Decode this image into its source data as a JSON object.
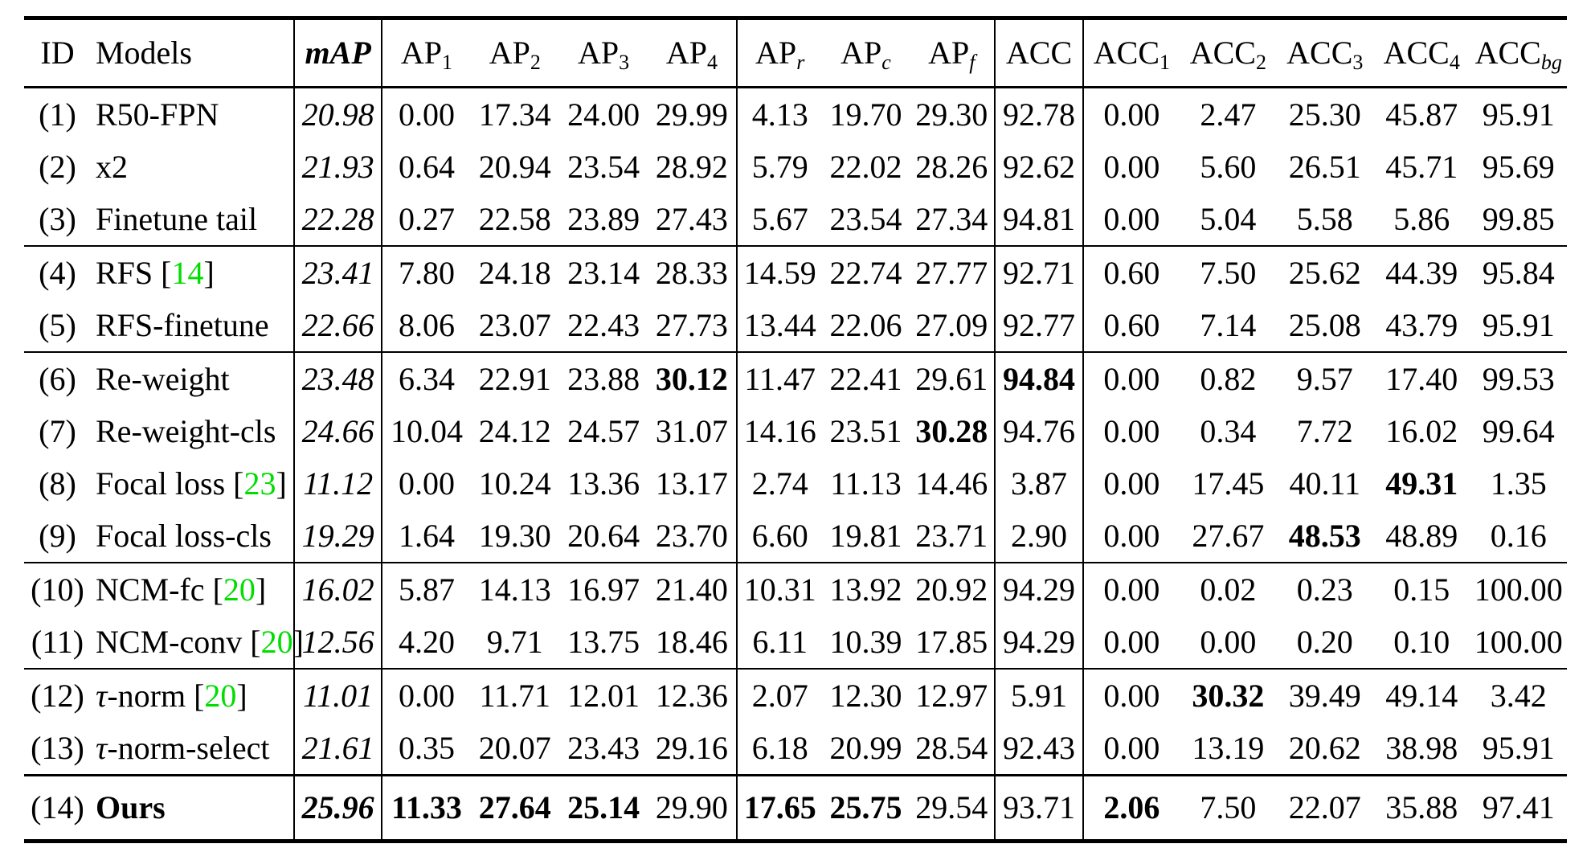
{
  "colors": {
    "citation_green": "#00DD00"
  },
  "table": {
    "columns": [
      {
        "key": "id",
        "label": "ID"
      },
      {
        "key": "model",
        "label": "Models"
      },
      {
        "key": "mAP",
        "label": "mAP",
        "bold": true,
        "italic": true
      },
      {
        "key": "AP1",
        "label": "AP",
        "sub": "1"
      },
      {
        "key": "AP2",
        "label": "AP",
        "sub": "2"
      },
      {
        "key": "AP3",
        "label": "AP",
        "sub": "3"
      },
      {
        "key": "AP4",
        "label": "AP",
        "sub": "4"
      },
      {
        "key": "APr",
        "label": "AP",
        "sub": "r",
        "sub_italic": true
      },
      {
        "key": "APc",
        "label": "AP",
        "sub": "c",
        "sub_italic": true
      },
      {
        "key": "APf",
        "label": "AP",
        "sub": "f",
        "sub_italic": true
      },
      {
        "key": "ACC",
        "label": "ACC"
      },
      {
        "key": "ACC1",
        "label": "ACC",
        "sub": "1"
      },
      {
        "key": "ACC2",
        "label": "ACC",
        "sub": "2"
      },
      {
        "key": "ACC3",
        "label": "ACC",
        "sub": "3"
      },
      {
        "key": "ACC4",
        "label": "ACC",
        "sub": "4"
      },
      {
        "key": "ACCbg",
        "label": "ACC",
        "sub": "bg",
        "sub_italic": true
      }
    ],
    "rows": [
      {
        "id": "(1)",
        "model": "R50-FPN",
        "cite": null,
        "group_start": false,
        "final": false,
        "bold": [],
        "values": [
          "20.98",
          "0.00",
          "17.34",
          "24.00",
          "29.99",
          "4.13",
          "19.70",
          "29.30",
          "92.78",
          "0.00",
          "2.47",
          "25.30",
          "45.87",
          "95.91"
        ]
      },
      {
        "id": "(2)",
        "model": "x2",
        "cite": null,
        "group_start": false,
        "final": false,
        "bold": [],
        "values": [
          "21.93",
          "0.64",
          "20.94",
          "23.54",
          "28.92",
          "5.79",
          "22.02",
          "28.26",
          "92.62",
          "0.00",
          "5.60",
          "26.51",
          "45.71",
          "95.69"
        ]
      },
      {
        "id": "(3)",
        "model": "Finetune tail",
        "cite": null,
        "group_start": false,
        "final": false,
        "bold": [],
        "values": [
          "22.28",
          "0.27",
          "22.58",
          "23.89",
          "27.43",
          "5.67",
          "23.54",
          "27.34",
          "94.81",
          "0.00",
          "5.04",
          "5.58",
          "5.86",
          "99.85"
        ]
      },
      {
        "id": "(4)",
        "model": "RFS",
        "cite": "14",
        "group_start": true,
        "final": false,
        "bold": [],
        "values": [
          "23.41",
          "7.80",
          "24.18",
          "23.14",
          "28.33",
          "14.59",
          "22.74",
          "27.77",
          "92.71",
          "0.60",
          "7.50",
          "25.62",
          "44.39",
          "95.84"
        ]
      },
      {
        "id": "(5)",
        "model": "RFS-finetune",
        "cite": null,
        "group_start": false,
        "final": false,
        "bold": [],
        "values": [
          "22.66",
          "8.06",
          "23.07",
          "22.43",
          "27.73",
          "13.44",
          "22.06",
          "27.09",
          "92.77",
          "0.60",
          "7.14",
          "25.08",
          "43.79",
          "95.91"
        ]
      },
      {
        "id": "(6)",
        "model": "Re-weight",
        "cite": null,
        "group_start": true,
        "final": false,
        "bold": [
          4,
          8
        ],
        "values": [
          "23.48",
          "6.34",
          "22.91",
          "23.88",
          "30.12",
          "11.47",
          "22.41",
          "29.61",
          "94.84",
          "0.00",
          "0.82",
          "9.57",
          "17.40",
          "99.53"
        ]
      },
      {
        "id": "(7)",
        "model": "Re-weight-cls",
        "cite": null,
        "group_start": false,
        "final": false,
        "bold": [
          7
        ],
        "values": [
          "24.66",
          "10.04",
          "24.12",
          "24.57",
          "31.07",
          "14.16",
          "23.51",
          "30.28",
          "94.76",
          "0.00",
          "0.34",
          "7.72",
          "16.02",
          "99.64"
        ]
      },
      {
        "id": "(8)",
        "model": "Focal loss",
        "cite": "23",
        "group_start": false,
        "final": false,
        "bold": [
          12
        ],
        "values": [
          "11.12",
          "0.00",
          "10.24",
          "13.36",
          "13.17",
          "2.74",
          "11.13",
          "14.46",
          "3.87",
          "0.00",
          "17.45",
          "40.11",
          "49.31",
          "1.35"
        ]
      },
      {
        "id": "(9)",
        "model": "Focal loss-cls",
        "cite": null,
        "group_start": false,
        "final": false,
        "bold": [
          11
        ],
        "values": [
          "19.29",
          "1.64",
          "19.30",
          "20.64",
          "23.70",
          "6.60",
          "19.81",
          "23.71",
          "2.90",
          "0.00",
          "27.67",
          "48.53",
          "48.89",
          "0.16"
        ]
      },
      {
        "id": "(10)",
        "model": "NCM-fc",
        "cite": "20",
        "group_start": true,
        "final": false,
        "bold": [],
        "values": [
          "16.02",
          "5.87",
          "14.13",
          "16.97",
          "21.40",
          "10.31",
          "13.92",
          "20.92",
          "94.29",
          "0.00",
          "0.02",
          "0.23",
          "0.15",
          "100.00"
        ]
      },
      {
        "id": "(11)",
        "model": "NCM-conv",
        "cite": "20",
        "group_start": false,
        "final": false,
        "bold": [],
        "values": [
          "12.56",
          "4.20",
          "9.71",
          "13.75",
          "18.46",
          "6.11",
          "10.39",
          "17.85",
          "94.29",
          "0.00",
          "0.00",
          "0.20",
          "0.10",
          "100.00"
        ]
      },
      {
        "id": "(12)",
        "model": "τ-norm",
        "cite": "20",
        "group_start": true,
        "final": false,
        "bold": [
          10
        ],
        "values": [
          "11.01",
          "0.00",
          "11.71",
          "12.01",
          "12.36",
          "2.07",
          "12.30",
          "12.97",
          "5.91",
          "0.00",
          "30.32",
          "39.49",
          "49.14",
          "3.42"
        ]
      },
      {
        "id": "(13)",
        "model": "τ-norm-select",
        "cite": null,
        "group_start": false,
        "final": false,
        "bold": [],
        "values": [
          "21.61",
          "0.35",
          "20.07",
          "23.43",
          "29.16",
          "6.18",
          "20.99",
          "28.54",
          "92.43",
          "0.00",
          "13.19",
          "20.62",
          "38.98",
          "95.91"
        ]
      },
      {
        "id": "(14)",
        "model": "Ours",
        "model_bold": true,
        "cite": null,
        "group_start": false,
        "final": true,
        "bold": [
          0,
          1,
          2,
          3,
          5,
          6,
          9
        ],
        "values": [
          "25.96",
          "11.33",
          "27.64",
          "25.14",
          "29.90",
          "17.65",
          "25.75",
          "29.54",
          "93.71",
          "2.06",
          "7.50",
          "22.07",
          "35.88",
          "97.41"
        ]
      }
    ]
  }
}
